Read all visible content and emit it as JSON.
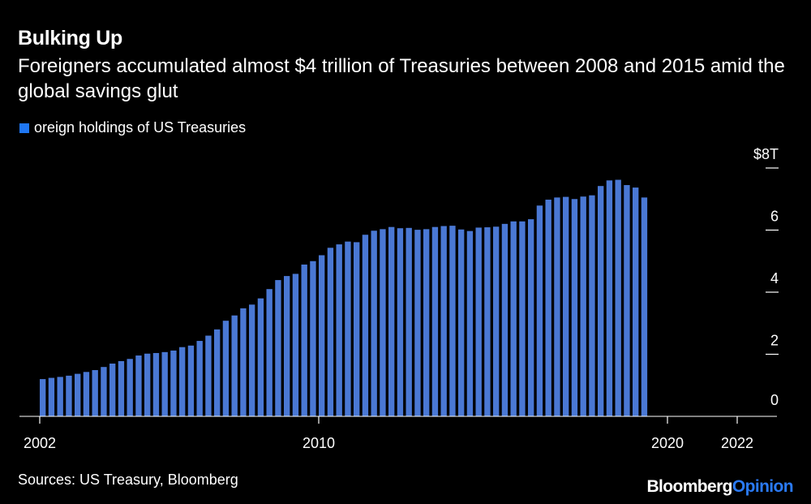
{
  "header": {
    "title": "Bulking Up",
    "subtitle": "Foreigners accumulated almost $4 trillion of Treasuries between 2008 and 2015 amid the global savings glut"
  },
  "legend": {
    "label": "oreign holdings of US Treasuries"
  },
  "footer": {
    "source": "Sources: US Treasury, Bloomberg",
    "brand_main": "Bloomberg",
    "brand_accent": "Opinion"
  },
  "colors": {
    "bar": "#4a78d4",
    "legend": "#1f77f4",
    "accent": "#2a7af6",
    "axis": "#ffffff"
  },
  "chart_data": {
    "type": "bar",
    "title": "Foreign holdings of US Treasuries",
    "xlabel": "",
    "ylabel": "",
    "unit": "trillion USD",
    "ylim": [
      0,
      8
    ],
    "yticks": [
      {
        "value": 0,
        "label": "0"
      },
      {
        "value": 2,
        "label": "2"
      },
      {
        "value": 4,
        "label": "4"
      },
      {
        "value": 6,
        "label": "6"
      },
      {
        "value": 8,
        "label": "$8T"
      }
    ],
    "xticks": [
      {
        "value": 2002,
        "label": "2002"
      },
      {
        "value": 2010,
        "label": "2010"
      },
      {
        "value": 2020,
        "label": "2020"
      },
      {
        "value": 2022,
        "label": "2022"
      }
    ],
    "x_start": 2002.0,
    "x_step": 0.25,
    "values": [
      1.2,
      1.24,
      1.27,
      1.31,
      1.37,
      1.43,
      1.49,
      1.59,
      1.7,
      1.78,
      1.85,
      1.96,
      2.02,
      2.04,
      2.07,
      2.12,
      2.23,
      2.28,
      2.43,
      2.6,
      2.8,
      3.08,
      3.25,
      3.48,
      3.6,
      3.8,
      4.1,
      4.39,
      4.52,
      4.59,
      4.89,
      5.0,
      5.19,
      5.43,
      5.54,
      5.63,
      5.61,
      5.85,
      5.98,
      6.03,
      6.1,
      6.06,
      6.07,
      6.01,
      6.03,
      6.1,
      6.13,
      6.14,
      6.02,
      5.97,
      6.08,
      6.09,
      6.11,
      6.2,
      6.28,
      6.28,
      6.35,
      6.79,
      6.98,
      7.05,
      7.07,
      7.0,
      7.08,
      7.12,
      7.42,
      7.6,
      7.62,
      7.45,
      7.37,
      7.05
    ]
  }
}
